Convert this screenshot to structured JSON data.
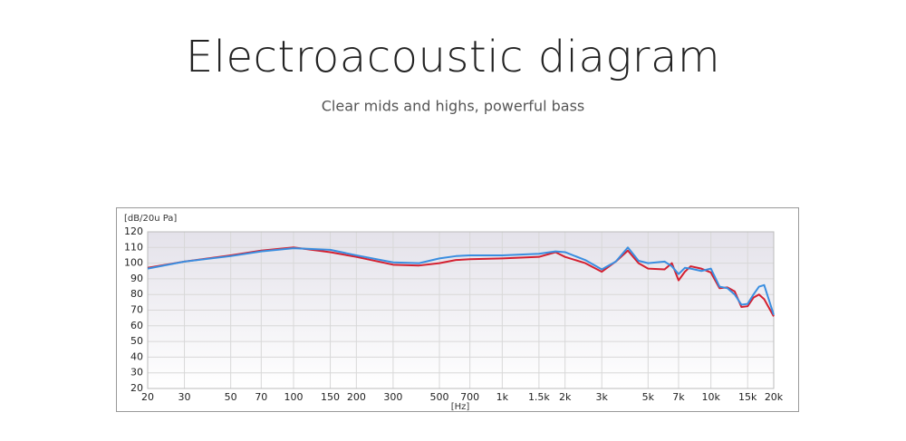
{
  "chart_data": {
    "type": "line",
    "title": "Electroacoustic diagram",
    "subtitle": "Clear mids and highs, powerful bass",
    "y_label": "[dB/20u Pa]",
    "x_label": "[Hz]",
    "xscale": "log",
    "grid": true,
    "xlim": [
      20,
      20000
    ],
    "ylim": [
      20,
      120
    ],
    "yticks": [
      20,
      30,
      40,
      50,
      60,
      70,
      80,
      90,
      100,
      110,
      120
    ],
    "xticks": [
      20,
      30,
      50,
      70,
      100,
      150,
      200,
      300,
      500,
      700,
      {
        "value": 1000,
        "label": "1k"
      },
      {
        "value": 1500,
        "label": "1.5k"
      },
      {
        "value": 2000,
        "label": "2k"
      },
      {
        "value": 3000,
        "label": "3k"
      },
      {
        "value": 5000,
        "label": "5k"
      },
      {
        "value": 7000,
        "label": "7k"
      },
      {
        "value": 10000,
        "label": "10k"
      },
      {
        "value": 15000,
        "label": "15k"
      },
      {
        "value": 20000,
        "label": "20k"
      }
    ],
    "x": [
      20,
      30,
      50,
      70,
      100,
      150,
      200,
      300,
      400,
      500,
      600,
      700,
      1000,
      1500,
      1800,
      2000,
      2500,
      3000,
      3500,
      4000,
      4500,
      5000,
      6000,
      6500,
      7000,
      7500,
      8000,
      9000,
      10000,
      11000,
      12000,
      13000,
      14000,
      15000,
      16000,
      17000,
      18000,
      20000
    ],
    "series": [
      {
        "color": "#d42030",
        "values": [
          97,
          101,
          105,
          108,
          110,
          107,
          104,
          99,
          98.5,
          100,
          102,
          102.5,
          103,
          104,
          107,
          104,
          100,
          94.5,
          101,
          108,
          100,
          96.5,
          96,
          100,
          89,
          94.5,
          98,
          96.5,
          94,
          84,
          84.5,
          82,
          72,
          72.5,
          78,
          80,
          77,
          66
        ]
      },
      {
        "color": "#3a8ee0",
        "values": [
          96.5,
          101,
          104.5,
          107.5,
          109.5,
          108.5,
          105,
          100.5,
          100,
          103,
          104.5,
          105,
          105,
          106,
          107.5,
          107,
          102,
          96,
          101,
          110,
          101.5,
          100,
          101,
          98,
          93,
          97,
          96.5,
          95,
          96.5,
          85,
          84,
          80,
          73.5,
          74,
          80,
          85,
          86,
          67
        ]
      }
    ]
  }
}
